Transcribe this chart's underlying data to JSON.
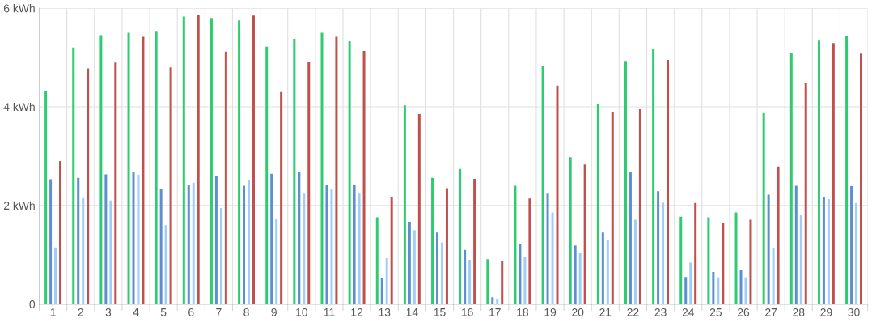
{
  "chart_data": {
    "type": "bar",
    "categories": [
      "1",
      "2",
      "3",
      "4",
      "5",
      "6",
      "7",
      "8",
      "9",
      "10",
      "11",
      "12",
      "13",
      "14",
      "15",
      "16",
      "17",
      "18",
      "19",
      "20",
      "21",
      "22",
      "23",
      "24",
      "25",
      "26",
      "27",
      "28",
      "29",
      "30"
    ],
    "series": [
      {
        "color": "#2ecc71",
        "values": [
          4.32,
          5.2,
          5.45,
          5.5,
          5.54,
          5.83,
          5.8,
          5.75,
          5.22,
          5.38,
          5.5,
          5.33,
          1.76,
          4.03,
          2.56,
          2.74,
          0.91,
          2.4,
          4.82,
          2.98,
          4.05,
          4.93,
          5.18,
          1.77,
          1.76,
          1.86,
          3.89,
          5.09,
          5.34,
          5.43
        ]
      },
      {
        "color": "#5b8fd0",
        "values": [
          2.53,
          2.56,
          2.63,
          2.68,
          2.33,
          2.42,
          2.6,
          2.4,
          2.64,
          2.68,
          2.42,
          2.42,
          0.52,
          1.67,
          1.45,
          1.1,
          0.14,
          1.21,
          2.24,
          1.19,
          1.45,
          2.67,
          2.29,
          0.55,
          0.65,
          0.69,
          2.22,
          2.4,
          2.16,
          2.39
        ]
      },
      {
        "color": "#9fcdfb",
        "values": [
          1.15,
          2.15,
          2.1,
          2.62,
          1.6,
          2.46,
          1.95,
          2.52,
          1.72,
          2.24,
          2.34,
          2.24,
          0.93,
          1.5,
          1.25,
          0.9,
          0.1,
          0.96,
          1.86,
          1.04,
          1.31,
          1.71,
          2.06,
          0.84,
          0.54,
          0.54,
          1.13,
          1.8,
          2.13,
          2.05
        ]
      },
      {
        "color": "#c0504d",
        "values": [
          2.9,
          4.78,
          4.9,
          5.42,
          4.8,
          5.87,
          5.12,
          5.85,
          4.3,
          4.92,
          5.42,
          5.13,
          2.17,
          3.85,
          2.35,
          2.54,
          0.87,
          2.14,
          4.43,
          2.83,
          3.9,
          3.95,
          4.95,
          2.05,
          1.64,
          1.71,
          2.79,
          4.48,
          5.29,
          5.08
        ]
      }
    ],
    "ylim": [
      0,
      6
    ],
    "yticks": [
      0,
      {
        "value": 2,
        "label": "2 kWh"
      },
      {
        "value": 4,
        "label": "4 kWh"
      },
      {
        "value": 6,
        "label": "6 kWh"
      }
    ],
    "grid": true
  }
}
